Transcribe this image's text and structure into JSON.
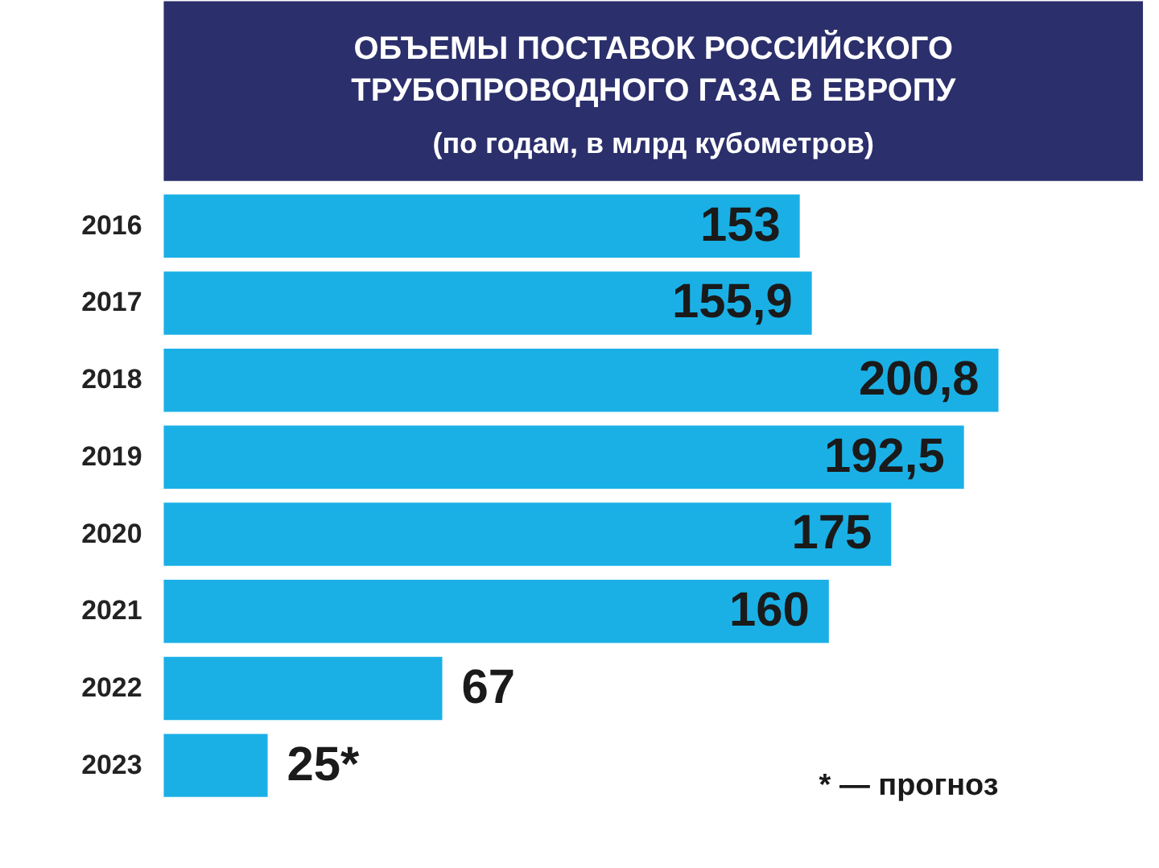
{
  "chart_data": {
    "type": "bar",
    "orientation": "horizontal",
    "title": "ОБЪЕМЫ ПОСТАВОК РОССИЙСКОГО ТРУБОПРОВОДНОГО ГАЗА В ЕВРОПУ",
    "subtitle": "(по годам, в млрд кубометров)",
    "categories": [
      "2016",
      "2017",
      "2018",
      "2019",
      "2020",
      "2021",
      "2022",
      "2023"
    ],
    "values": [
      153,
      155.9,
      200.8,
      192.5,
      175,
      160,
      67,
      25
    ],
    "value_labels": [
      "153",
      "155,9",
      "200,8",
      "192,5",
      "175",
      "160",
      "67",
      "25*"
    ],
    "color": "#1ab0e6",
    "annotations": [
      "* — прогноз"
    ]
  }
}
